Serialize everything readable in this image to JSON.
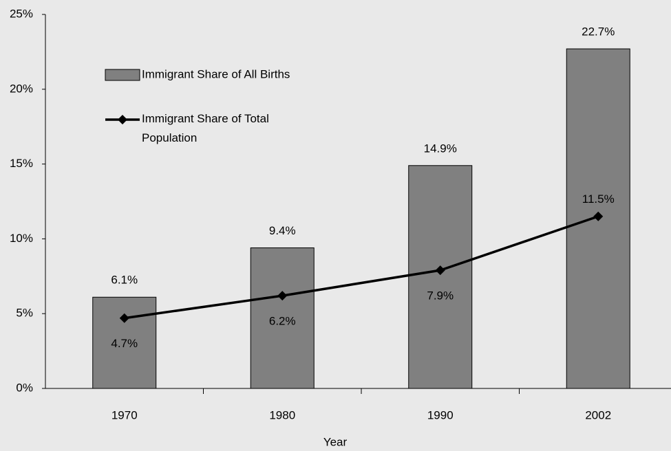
{
  "chart_data": {
    "type": "bar_line",
    "x_label": "Year",
    "categories": [
      "1970",
      "1980",
      "1990",
      "2002"
    ],
    "series": [
      {
        "name": "Immigrant Share of All Births",
        "type": "bar",
        "color": "#808080",
        "values": [
          6.1,
          9.4,
          14.9,
          22.7
        ],
        "value_labels": [
          "6.1%",
          "9.4%",
          "14.9%",
          "22.7%"
        ]
      },
      {
        "name": "Immigrant Share of Total Population",
        "type": "line",
        "color": "#000000",
        "values": [
          4.7,
          6.2,
          7.9,
          11.5
        ],
        "value_labels": [
          "4.7%",
          "6.2%",
          "7.9%",
          "11.5%"
        ]
      }
    ],
    "ylim": [
      0,
      25
    ],
    "yticks": [
      {
        "value": 0,
        "label": "0%"
      },
      {
        "value": 5,
        "label": "5%"
      },
      {
        "value": 10,
        "label": "10%"
      },
      {
        "value": 15,
        "label": "15%"
      },
      {
        "value": 20,
        "label": "20%"
      },
      {
        "value": 25,
        "label": "25%"
      }
    ],
    "legend": "top-left"
  }
}
